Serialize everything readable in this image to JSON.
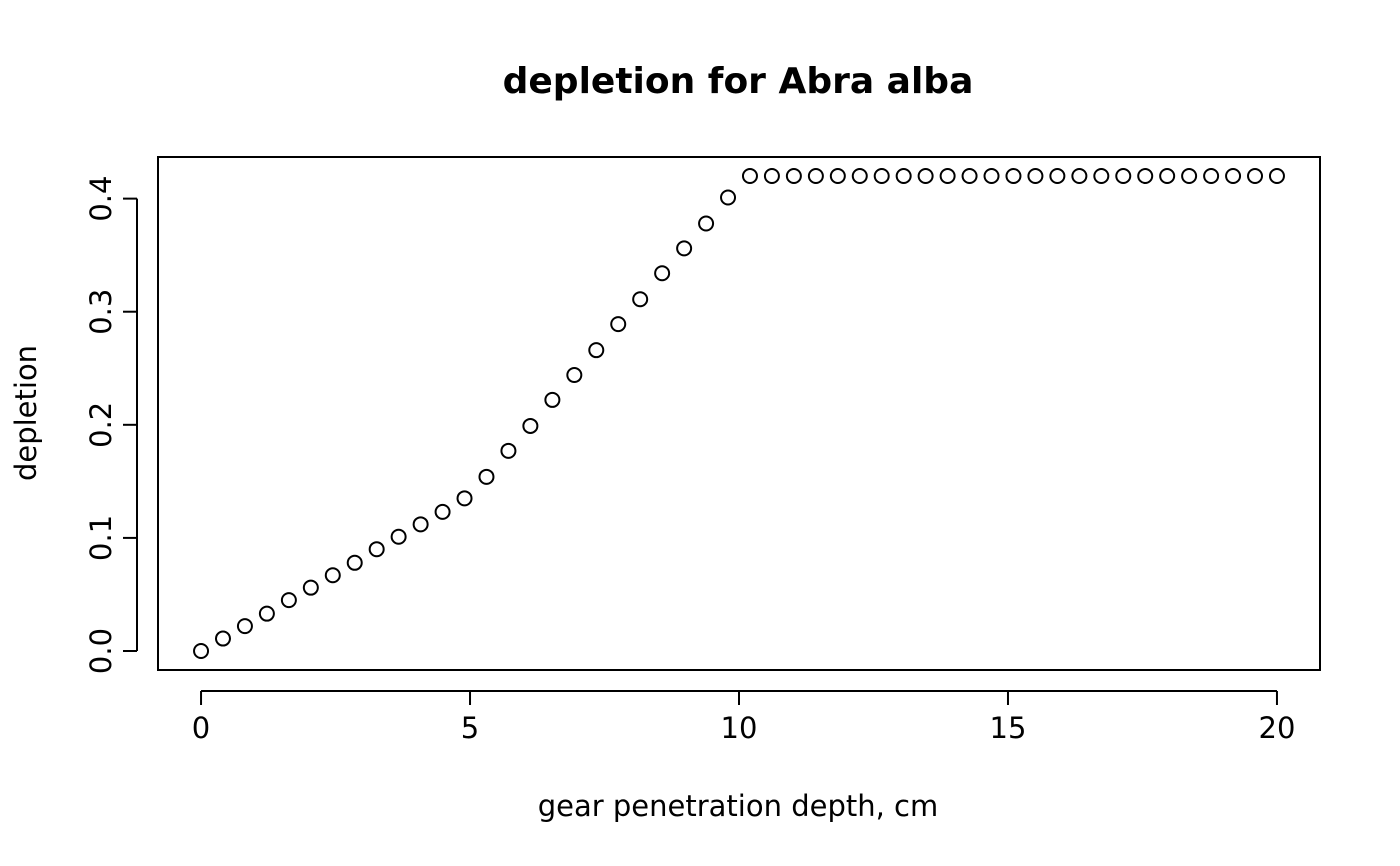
{
  "chart_data": {
    "type": "scatter",
    "title": "depletion for Abra alba",
    "xlabel": "gear penetration depth, cm",
    "ylabel": "depletion",
    "xlim": [
      -0.8,
      20.8
    ],
    "ylim": [
      -0.0168,
      0.4368
    ],
    "x_ticks": [
      0,
      5,
      10,
      15,
      20
    ],
    "x_tick_labels": [
      "0",
      "5",
      "10",
      "15",
      "20"
    ],
    "y_ticks": [
      0.0,
      0.1,
      0.2,
      0.3,
      0.4
    ],
    "y_tick_labels": [
      "0.0",
      "0.1",
      "0.2",
      "0.3",
      "0.4"
    ],
    "grid": false,
    "legend": "none",
    "marker": "open-circle",
    "series": [
      {
        "x": [
          0,
          0.408,
          0.816,
          1.224,
          1.633,
          2.041,
          2.449,
          2.857,
          3.265,
          3.673,
          4.082,
          4.49,
          4.898,
          5.306,
          5.714,
          6.122,
          6.531,
          6.939,
          7.347,
          7.755,
          8.163,
          8.571,
          8.98,
          9.388,
          9.796,
          10.204,
          10.612,
          11.02,
          11.429,
          11.837,
          12.245,
          12.653,
          13.061,
          13.469,
          13.878,
          14.286,
          14.694,
          15.102,
          15.51,
          15.918,
          16.327,
          16.735,
          17.143,
          17.551,
          17.959,
          18.367,
          18.776,
          19.184,
          19.592,
          20.0
        ],
        "y": [
          0.0,
          0.011,
          0.022,
          0.033,
          0.045,
          0.056,
          0.067,
          0.078,
          0.09,
          0.101,
          0.112,
          0.123,
          0.135,
          0.154,
          0.177,
          0.199,
          0.222,
          0.244,
          0.266,
          0.289,
          0.311,
          0.334,
          0.356,
          0.378,
          0.401,
          0.42,
          0.42,
          0.42,
          0.42,
          0.42,
          0.42,
          0.42,
          0.42,
          0.42,
          0.42,
          0.42,
          0.42,
          0.42,
          0.42,
          0.42,
          0.42,
          0.42,
          0.42,
          0.42,
          0.42,
          0.42,
          0.42,
          0.42,
          0.42,
          0.42
        ]
      }
    ]
  }
}
